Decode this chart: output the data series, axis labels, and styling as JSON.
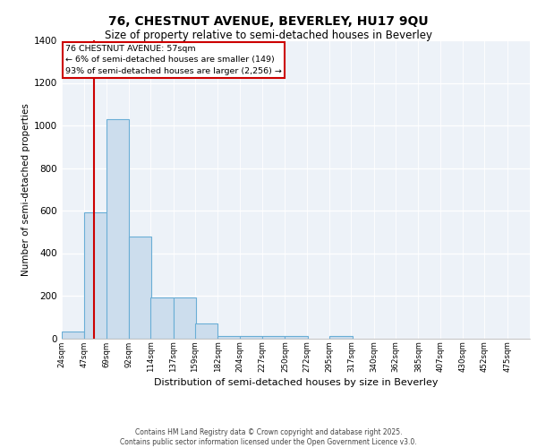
{
  "title_line1": "76, CHESTNUT AVENUE, BEVERLEY, HU17 9QU",
  "title_line2": "Size of property relative to semi-detached houses in Beverley",
  "xlabel": "Distribution of semi-detached houses by size in Beverley",
  "ylabel": "Number of semi-detached properties",
  "footer_line1": "Contains HM Land Registry data © Crown copyright and database right 2025.",
  "footer_line2": "Contains public sector information licensed under the Open Government Licence v3.0.",
  "annotation_title": "76 CHESTNUT AVENUE: 57sqm",
  "annotation_line1": "← 6% of semi-detached houses are smaller (149)",
  "annotation_line2": "93% of semi-detached houses are larger (2,256) →",
  "property_size": 57,
  "bin_labels": [
    "24sqm",
    "47sqm",
    "69sqm",
    "92sqm",
    "114sqm",
    "137sqm",
    "159sqm",
    "182sqm",
    "204sqm",
    "227sqm",
    "250sqm",
    "272sqm",
    "295sqm",
    "317sqm",
    "340sqm",
    "362sqm",
    "385sqm",
    "407sqm",
    "430sqm",
    "452sqm",
    "475sqm"
  ],
  "bin_edges": [
    24,
    47,
    69,
    92,
    114,
    137,
    159,
    182,
    204,
    227,
    250,
    272,
    295,
    317,
    340,
    362,
    385,
    407,
    430,
    452,
    475
  ],
  "bar_values": [
    30,
    590,
    1030,
    480,
    190,
    190,
    70,
    10,
    10,
    10,
    10,
    0,
    10,
    0,
    0,
    0,
    0,
    0,
    0,
    0,
    0
  ],
  "bar_color": "#ccdded",
  "bar_edge_color": "#6aaed6",
  "vline_color": "#cc0000",
  "vline_x": 57,
  "annotation_box_color": "#cc0000",
  "background_color": "#edf2f8",
  "ylim": [
    0,
    1400
  ],
  "yticks": [
    0,
    200,
    400,
    600,
    800,
    1000,
    1200,
    1400
  ]
}
